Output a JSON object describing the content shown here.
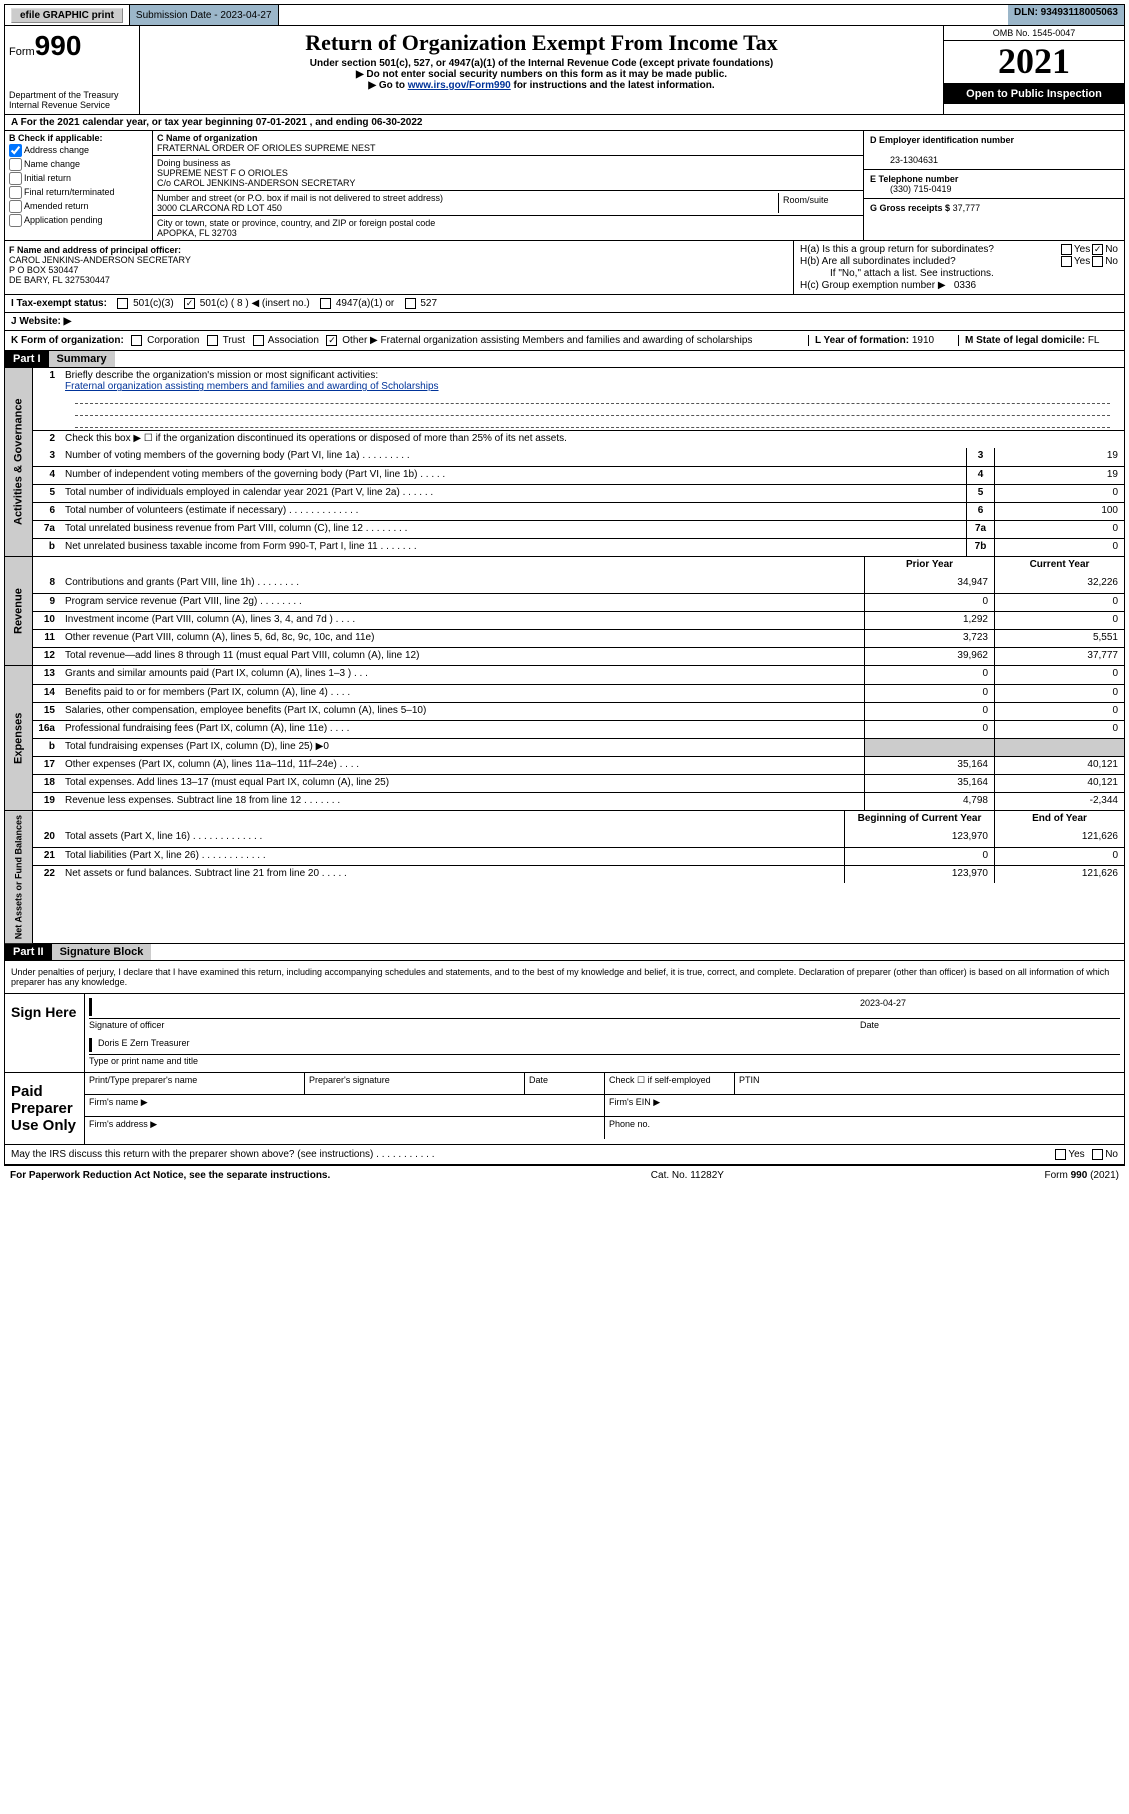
{
  "topbar": {
    "efile": "efile GRAPHIC print",
    "submission_label": "Submission Date - 2023-04-27",
    "dln": "DLN: 93493118005063"
  },
  "header": {
    "form_word": "Form",
    "form_num": "990",
    "dept": "Department of the Treasury\nInternal Revenue Service",
    "title": "Return of Organization Exempt From Income Tax",
    "sub1": "Under section 501(c), 527, or 4947(a)(1) of the Internal Revenue Code (except private foundations)",
    "sub2a": "▶ Do not enter social security numbers on this form as it may be made public.",
    "sub2b_pre": "▶ Go to ",
    "sub2b_link": "www.irs.gov/Form990",
    "sub2b_post": " for instructions and the latest information.",
    "omb": "OMB No. 1545-0047",
    "year": "2021",
    "inspect": "Open to Public Inspection"
  },
  "row_a": "A For the 2021 calendar year, or tax year beginning 07-01-2021    , and ending 06-30-2022",
  "col_b": {
    "label": "B Check if applicable:",
    "items": [
      "Address change",
      "Name change",
      "Initial return",
      "Final return/terminated",
      "Amended return",
      "Application pending"
    ],
    "checked_idx": 0
  },
  "col_c": {
    "name_lbl": "C Name of organization",
    "name": "FRATERNAL ORDER OF ORIOLES SUPREME NEST",
    "dba_lbl": "Doing business as",
    "dba": "SUPREME NEST F O ORIOLES",
    "care": "C/o CAROL JENKINS-ANDERSON SECRETARY",
    "addr_lbl": "Number and street (or P.O. box if mail is not delivered to street address)",
    "addr": "3000 CLARCONA RD LOT 450",
    "room_lbl": "Room/suite",
    "city_lbl": "City or town, state or province, country, and ZIP or foreign postal code",
    "city": "APOPKA, FL  32703"
  },
  "col_d": {
    "d_lbl": "D Employer identification number",
    "d_val": "23-1304631",
    "e_lbl": "E Telephone number",
    "e_val": "(330) 715-0419",
    "g_lbl": "G Gross receipts $",
    "g_val": "37,777"
  },
  "col_f": {
    "lbl": "F Name and address of principal officer:",
    "name": "CAROL JENKINS-ANDERSON SECRETARY",
    "addr1": "P O BOX 530447",
    "addr2": "DE BARY, FL  327530447"
  },
  "col_h": {
    "ha": "H(a)  Is this a group return for subordinates?",
    "hb": "H(b)  Are all subordinates included?",
    "hb_note": "If \"No,\" attach a list. See instructions.",
    "hc": "H(c)  Group exemption number ▶",
    "hc_val": "0336",
    "yes": "Yes",
    "no": "No"
  },
  "row_i": {
    "lbl": "I   Tax-exempt status:",
    "opts": [
      "501(c)(3)",
      "501(c) ( 8 ) ◀ (insert no.)",
      "4947(a)(1) or",
      "527"
    ],
    "checked_idx": 1
  },
  "row_j": "J   Website: ▶",
  "row_k": {
    "lbl": "K Form of organization:",
    "opts": [
      "Corporation",
      "Trust",
      "Association",
      "Other ▶"
    ],
    "checked_idx": 3,
    "other_text": "Fraternal organization assisting Members and families and awarding of scholarships",
    "l_lbl": "L Year of formation:",
    "l_val": "1910",
    "m_lbl": "M State of legal domicile:",
    "m_val": "FL"
  },
  "part1": {
    "hdr": "Part I",
    "title": "Summary"
  },
  "section_governance": {
    "vtab": "Activities & Governance",
    "r1_lbl": "Briefly describe the organization's mission or most significant activities:",
    "r1_val": "Fraternal organization assisting members and families and awarding of Scholarships",
    "r2": "Check this box ▶ ☐  if the organization discontinued its operations or disposed of more than 25% of its net assets.",
    "rows": [
      {
        "n": "3",
        "d": "Number of voting members of the governing body (Part VI, line 1a)  .  .  .  .  .  .  .  .  .",
        "box": "3",
        "v": "19"
      },
      {
        "n": "4",
        "d": "Number of independent voting members of the governing body (Part VI, line 1b)  .  .  .  .  .",
        "box": "4",
        "v": "19"
      },
      {
        "n": "5",
        "d": "Total number of individuals employed in calendar year 2021 (Part V, line 2a)  .  .  .  .  .  .",
        "box": "5",
        "v": "0"
      },
      {
        "n": "6",
        "d": "Total number of volunteers (estimate if necessary)  .  .  .  .  .  .  .  .  .  .  .  .  .",
        "box": "6",
        "v": "100"
      },
      {
        "n": "7a",
        "d": "Total unrelated business revenue from Part VIII, column (C), line 12  .  .  .  .  .  .  .  .",
        "box": "7a",
        "v": "0"
      },
      {
        "n": "b",
        "d": "Net unrelated business taxable income from Form 990-T, Part I, line 11  .  .  .  .  .  .  .",
        "box": "7b",
        "v": "0"
      }
    ]
  },
  "two_col_hdr": {
    "prior": "Prior Year",
    "current": "Current Year",
    "boy": "Beginning of Current Year",
    "eoy": "End of Year"
  },
  "section_revenue": {
    "vtab": "Revenue",
    "rows": [
      {
        "n": "8",
        "d": "Contributions and grants (Part VIII, line 1h)  .  .  .  .  .  .  .  .",
        "p": "34,947",
        "c": "32,226"
      },
      {
        "n": "9",
        "d": "Program service revenue (Part VIII, line 2g)  .  .  .  .  .  .  .  .",
        "p": "0",
        "c": "0"
      },
      {
        "n": "10",
        "d": "Investment income (Part VIII, column (A), lines 3, 4, and 7d )  .  .  .  .",
        "p": "1,292",
        "c": "0"
      },
      {
        "n": "11",
        "d": "Other revenue (Part VIII, column (A), lines 5, 6d, 8c, 9c, 10c, and 11e)",
        "p": "3,723",
        "c": "5,551"
      },
      {
        "n": "12",
        "d": "Total revenue—add lines 8 through 11 (must equal Part VIII, column (A), line 12)",
        "p": "39,962",
        "c": "37,777"
      }
    ]
  },
  "section_expenses": {
    "vtab": "Expenses",
    "rows": [
      {
        "n": "13",
        "d": "Grants and similar amounts paid (Part IX, column (A), lines 1–3 )  .  .  .",
        "p": "0",
        "c": "0"
      },
      {
        "n": "14",
        "d": "Benefits paid to or for members (Part IX, column (A), line 4)  .  .  .  .",
        "p": "0",
        "c": "0"
      },
      {
        "n": "15",
        "d": "Salaries, other compensation, employee benefits (Part IX, column (A), lines 5–10)",
        "p": "0",
        "c": "0"
      },
      {
        "n": "16a",
        "d": "Professional fundraising fees (Part IX, column (A), line 11e)  .  .  .  .",
        "p": "0",
        "c": "0"
      },
      {
        "n": "b",
        "d": "Total fundraising expenses (Part IX, column (D), line 25) ▶0",
        "p": "",
        "c": "",
        "grey": true
      },
      {
        "n": "17",
        "d": "Other expenses (Part IX, column (A), lines 11a–11d, 11f–24e)  .  .  .  .",
        "p": "35,164",
        "c": "40,121"
      },
      {
        "n": "18",
        "d": "Total expenses. Add lines 13–17 (must equal Part IX, column (A), line 25)",
        "p": "35,164",
        "c": "40,121"
      },
      {
        "n": "19",
        "d": "Revenue less expenses. Subtract line 18 from line 12  .  .  .  .  .  .  .",
        "p": "4,798",
        "c": "-2,344"
      }
    ]
  },
  "section_net": {
    "vtab": "Net Assets or Fund Balances",
    "rows": [
      {
        "n": "20",
        "d": "Total assets (Part X, line 16)  .  .  .  .  .  .  .  .  .  .  .  .  .",
        "p": "123,970",
        "c": "121,626"
      },
      {
        "n": "21",
        "d": "Total liabilities (Part X, line 26)  .  .  .  .  .  .  .  .  .  .  .  .",
        "p": "0",
        "c": "0"
      },
      {
        "n": "22",
        "d": "Net assets or fund balances. Subtract line 21 from line 20  .  .  .  .  .",
        "p": "123,970",
        "c": "121,626"
      }
    ]
  },
  "part2": {
    "hdr": "Part II",
    "title": "Signature Block"
  },
  "sig_decl": "Under penalties of perjury, I declare that I have examined this return, including accompanying schedules and statements, and to the best of my knowledge and belief, it is true, correct, and complete. Declaration of preparer (other than officer) is based on all information of which preparer has any knowledge.",
  "sign_here": {
    "label": "Sign Here",
    "sig_officer": "Signature of officer",
    "date_lbl": "Date",
    "date_val": "2023-04-27",
    "name": "Doris E Zern Treasurer",
    "name_lbl": "Type or print name and title"
  },
  "paid": {
    "label": "Paid Preparer Use Only",
    "cols": [
      "Print/Type preparer's name",
      "Preparer's signature",
      "Date"
    ],
    "check_lbl": "Check ☐ if self-employed",
    "ptin": "PTIN",
    "firm_name": "Firm's name  ▶",
    "firm_ein": "Firm's EIN ▶",
    "firm_addr": "Firm's address ▶",
    "phone": "Phone no."
  },
  "footer": {
    "discuss": "May the IRS discuss this return with the preparer shown above? (see instructions)  .  .  .  .  .  .  .  .  .  .  .",
    "paperwork": "For Paperwork Reduction Act Notice, see the separate instructions.",
    "cat": "Cat. No. 11282Y",
    "form": "Form 990 (2021)",
    "yes": "Yes",
    "no": "No"
  }
}
